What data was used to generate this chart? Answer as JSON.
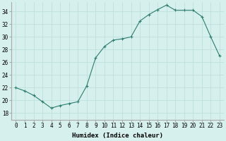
{
  "x": [
    0,
    1,
    2,
    3,
    4,
    5,
    6,
    7,
    8,
    9,
    10,
    11,
    12,
    13,
    14,
    15,
    16,
    17,
    18,
    19,
    20,
    21,
    22,
    23
  ],
  "y": [
    22.0,
    21.5,
    20.8,
    19.8,
    18.8,
    19.2,
    19.5,
    19.8,
    22.3,
    26.7,
    28.5,
    29.5,
    29.7,
    30.0,
    32.5,
    33.5,
    34.3,
    35.0,
    34.2,
    34.2,
    34.2,
    33.2,
    30.0,
    27.0
  ],
  "line_color": "#2e7d6e",
  "marker": "+",
  "marker_size": 3,
  "marker_color": "#2e7d6e",
  "bg_color": "#d6f0ee",
  "grid_color": "#b8ddd9",
  "xlabel": "Humidex (Indice chaleur)",
  "xlim": [
    -0.5,
    23.5
  ],
  "ylim": [
    17,
    35.5
  ],
  "yticks": [
    18,
    20,
    22,
    24,
    26,
    28,
    30,
    32,
    34
  ],
  "xticks": [
    0,
    1,
    2,
    3,
    4,
    5,
    6,
    7,
    8,
    9,
    10,
    11,
    12,
    13,
    14,
    15,
    16,
    17,
    18,
    19,
    20,
    21,
    22,
    23
  ],
  "xtick_labels": [
    "0",
    "1",
    "2",
    "3",
    "4",
    "5",
    "6",
    "7",
    "8",
    "9",
    "10",
    "11",
    "12",
    "13",
    "14",
    "15",
    "16",
    "17",
    "18",
    "19",
    "20",
    "21",
    "22",
    "23"
  ],
  "axis_label_fontsize": 6.5,
  "tick_fontsize": 5.5
}
